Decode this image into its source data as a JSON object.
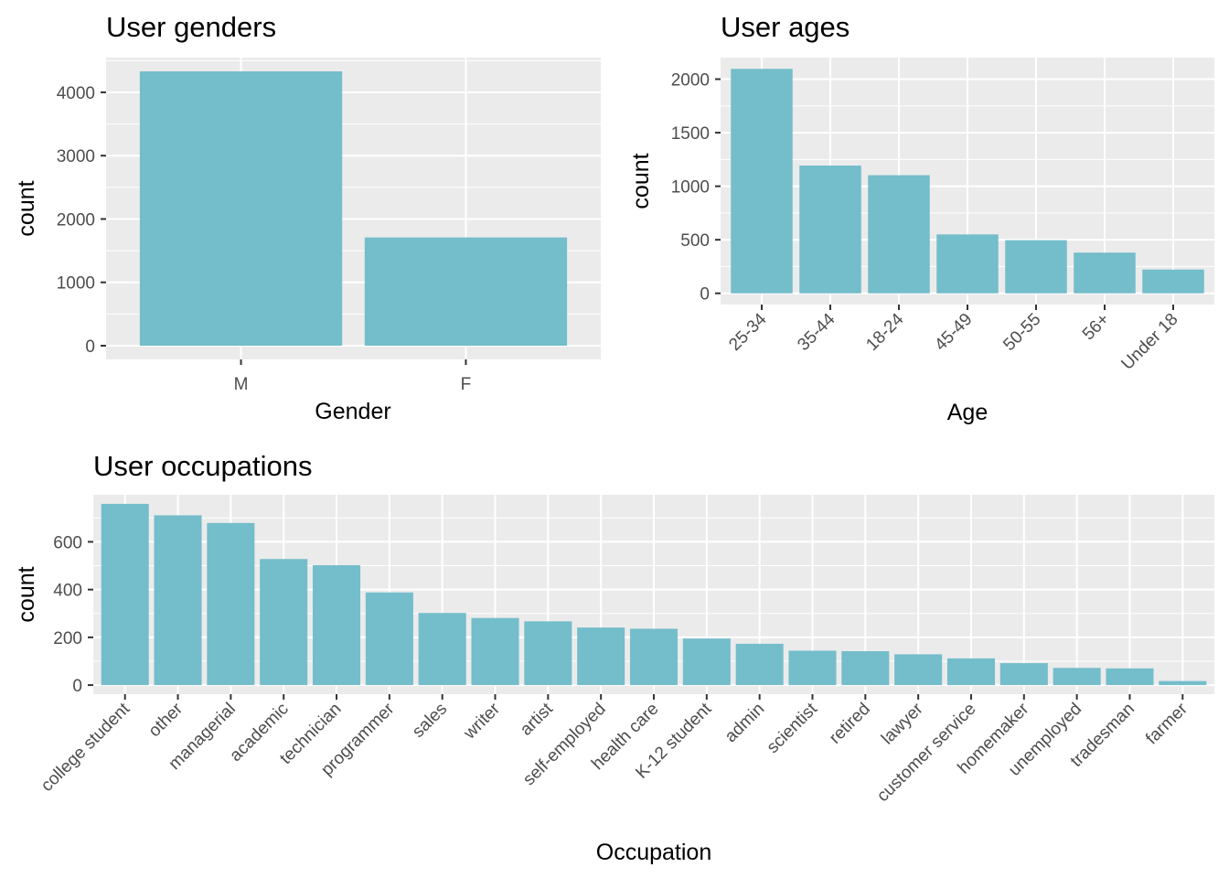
{
  "chart_data": [
    {
      "type": "bar",
      "title": "User genders",
      "xlabel": "Gender",
      "ylabel": "count",
      "categories": [
        "M",
        "F"
      ],
      "values": [
        4331,
        1709
      ],
      "yticks": [
        0,
        1000,
        2000,
        3000,
        4000
      ],
      "ylim": [
        -217,
        4548
      ],
      "grid": true,
      "bar_color": "#74BDCB",
      "panel_color": "#EBEBEB"
    },
    {
      "type": "bar",
      "title": "User ages",
      "xlabel": "Age",
      "ylabel": "count",
      "categories": [
        "25-34",
        "35-44",
        "18-24",
        "45-49",
        "50-55",
        "56+",
        "Under 18"
      ],
      "values": [
        2096,
        1193,
        1103,
        550,
        496,
        380,
        222
      ],
      "yticks": [
        0,
        500,
        1000,
        1500,
        2000
      ],
      "ylim": [
        -105,
        2201
      ],
      "grid": true,
      "bar_color": "#74BDCB",
      "panel_color": "#EBEBEB"
    },
    {
      "type": "bar",
      "title": "User occupations",
      "xlabel": "Occupation",
      "ylabel": "count",
      "categories": [
        "college student",
        "other",
        "managerial",
        "academic",
        "technician",
        "programmer",
        "sales",
        "writer",
        "artist",
        "self-employed",
        "health care",
        "K-12 student",
        "admin",
        "scientist",
        "retired",
        "lawyer",
        "customer service",
        "homemaker",
        "unemployed",
        "tradesman",
        "farmer"
      ],
      "values": [
        759,
        711,
        679,
        528,
        502,
        388,
        302,
        281,
        267,
        241,
        236,
        195,
        173,
        144,
        142,
        129,
        112,
        92,
        72,
        70,
        17
      ],
      "yticks": [
        0,
        200,
        400,
        600
      ],
      "ylim": [
        -38,
        797
      ],
      "grid": true,
      "bar_color": "#74BDCB",
      "panel_color": "#EBEBEB"
    }
  ]
}
